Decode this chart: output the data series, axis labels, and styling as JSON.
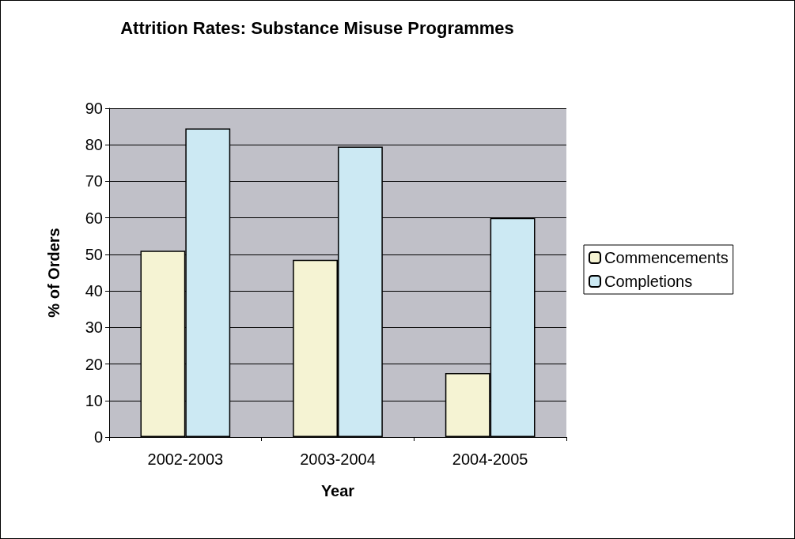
{
  "chart_data": {
    "type": "bar",
    "title": "Attrition Rates: Substance Misuse Programmes",
    "xlabel": "Year",
    "ylabel": "% of Orders",
    "categories": [
      "2002-2003",
      "2003-2004",
      "2004-2005"
    ],
    "series": [
      {
        "name": "Commencements",
        "color": "#f5f3d3",
        "values": [
          51,
          48.5,
          17.5
        ]
      },
      {
        "name": "Completions",
        "color": "#cce9f3",
        "values": [
          84.5,
          79.5,
          60
        ]
      }
    ],
    "ylim": [
      0,
      90
    ],
    "yticks": [
      0,
      10,
      20,
      30,
      40,
      50,
      60,
      70,
      80,
      90
    ],
    "grid": "y",
    "legend": "right"
  }
}
